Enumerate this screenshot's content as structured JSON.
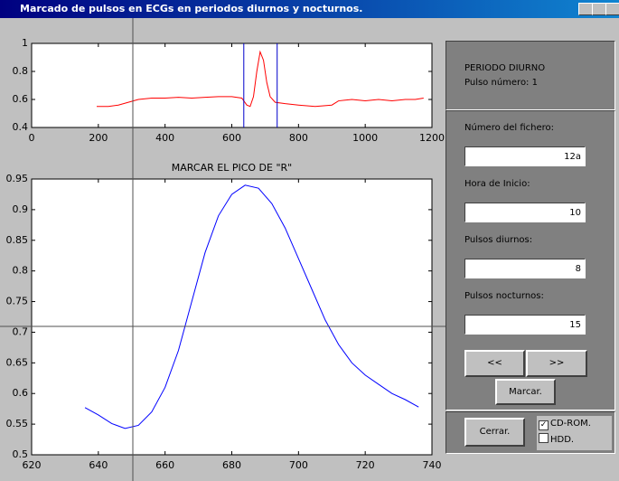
{
  "window": {
    "title": "Marcado de pulsos en ECGs en periodos diurnos y nocturnos."
  },
  "chart_data": [
    {
      "type": "line",
      "xlim": [
        0,
        1200
      ],
      "xticks": [
        0,
        200,
        400,
        600,
        800,
        1000,
        1200
      ],
      "ylim": [
        0.4,
        1
      ],
      "yticks": [
        0.4,
        0.6,
        0.8,
        1
      ],
      "markers": [
        636,
        736
      ],
      "marker_color": "#0000cc",
      "series": [
        {
          "color": "#ff0000",
          "x": [
            195,
            230,
            260,
            290,
            320,
            360,
            400,
            440,
            480,
            520,
            560,
            600,
            630,
            645,
            655,
            665,
            675,
            685,
            695,
            705,
            715,
            730,
            760,
            800,
            850,
            900,
            920,
            960,
            1000,
            1040,
            1080,
            1120,
            1150,
            1175
          ],
          "values": [
            0.55,
            0.55,
            0.56,
            0.58,
            0.6,
            0.61,
            0.61,
            0.615,
            0.61,
            0.615,
            0.62,
            0.62,
            0.61,
            0.56,
            0.55,
            0.62,
            0.8,
            0.94,
            0.88,
            0.72,
            0.62,
            0.58,
            0.57,
            0.56,
            0.55,
            0.56,
            0.59,
            0.6,
            0.59,
            0.6,
            0.59,
            0.6,
            0.6,
            0.61
          ]
        }
      ]
    },
    {
      "type": "line",
      "title": "MARCAR EL PICO DE \"R\"",
      "xlim": [
        620,
        740
      ],
      "xticks": [
        620,
        640,
        660,
        680,
        700,
        720,
        740
      ],
      "ylim": [
        0.5,
        0.95
      ],
      "yticks": [
        0.5,
        0.55,
        0.6,
        0.65,
        0.7,
        0.75,
        0.8,
        0.85,
        0.9,
        0.95
      ],
      "series": [
        {
          "color": "#0000ff",
          "x": [
            636,
            640,
            644,
            648,
            652,
            656,
            660,
            664,
            668,
            672,
            676,
            680,
            684,
            688,
            692,
            696,
            700,
            704,
            708,
            712,
            716,
            720,
            724,
            728,
            732,
            736
          ],
          "values": [
            0.577,
            0.565,
            0.551,
            0.543,
            0.548,
            0.57,
            0.61,
            0.67,
            0.75,
            0.83,
            0.89,
            0.925,
            0.94,
            0.935,
            0.91,
            0.87,
            0.82,
            0.77,
            0.72,
            0.68,
            0.65,
            0.63,
            0.615,
            0.6,
            0.59,
            0.578
          ]
        }
      ]
    }
  ],
  "panel": {
    "period": "PERIODO DIURNO",
    "pulse": "Pulso número: 1",
    "fields": [
      {
        "label": "Número del fichero:",
        "value": "12a"
      },
      {
        "label": "Hora de Inicio:",
        "value": "10"
      },
      {
        "label": "Pulsos diurnos:",
        "value": "8"
      },
      {
        "label": "Pulsos nocturnos:",
        "value": "15"
      }
    ],
    "buttons": {
      "prev": "<<",
      "next": ">>",
      "mark": "Marcar.",
      "close": "Cerrar."
    },
    "checkboxes": [
      {
        "label": "CD-ROM.",
        "checked": true
      },
      {
        "label": "HDD.",
        "checked": false
      }
    ]
  }
}
